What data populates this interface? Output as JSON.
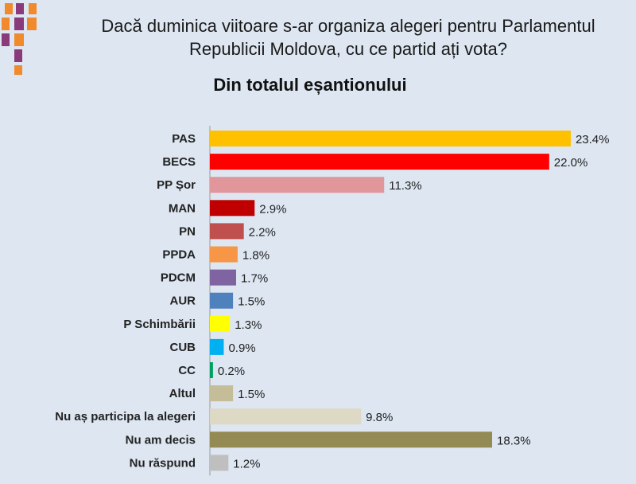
{
  "title_line1": "Dacă duminica viitoare s-ar organiza alegeri pentru Parlamentul",
  "title_line2": "Republicii Moldova, cu ce partid ați vota?",
  "colors": {
    "background": "#dde6f1",
    "deco_orange": "#f08a2c",
    "deco_purple": "#8a3a7a"
  },
  "chart_data": {
    "type": "bar",
    "orientation": "horizontal",
    "title": "Din totalul eșantionului",
    "xlabel": "",
    "ylabel": "",
    "grid": false,
    "legend": "none",
    "xlim": [
      0,
      25
    ],
    "categories": [
      "PAS",
      "BECS",
      "PP Șor",
      "MAN",
      "PN",
      "PPDA",
      "PDCM",
      "AUR",
      "P Schimbării",
      "CUB",
      "CC",
      "Altul",
      "Nu aș participa la alegeri",
      "Nu am decis",
      "Nu răspund"
    ],
    "values": [
      23.4,
      22.0,
      11.3,
      2.9,
      2.2,
      1.8,
      1.7,
      1.5,
      1.3,
      0.9,
      0.2,
      1.5,
      9.8,
      18.3,
      1.2
    ],
    "value_labels": [
      "23.4%",
      "22.0%",
      "11.3%",
      "2.9%",
      "2.2%",
      "1.8%",
      "1.7%",
      "1.5%",
      "1.3%",
      "0.9%",
      "0.2%",
      "1.5%",
      "9.8%",
      "18.3%",
      "1.2%"
    ],
    "bar_colors": [
      "#ffc000",
      "#ff0000",
      "#e0969b",
      "#c00000",
      "#c0504d",
      "#f79646",
      "#8064a2",
      "#4f81bd",
      "#ffff00",
      "#00b0f0",
      "#00a060",
      "#c4bd97",
      "#ddd9c4",
      "#948a54",
      "#bfbfbf"
    ]
  }
}
